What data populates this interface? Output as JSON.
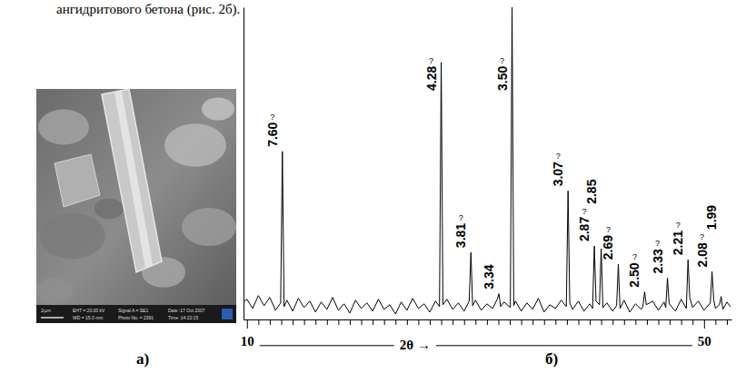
{
  "header": {
    "text": "ангидритового бетона (рис. 2б)."
  },
  "photo": {
    "label": "а)",
    "scale_bar": "2μm",
    "info": [
      "EHT = 20.00 kV",
      "WD = 15.0 mm",
      "Signal A = SE1",
      "Photo No. = 2391",
      "Date :17 Oct 2007",
      "Time :14:22:15"
    ]
  },
  "chart_data": {
    "type": "line",
    "panel_label": "б)",
    "xlabel": "2θ →",
    "color": "#000000",
    "xlim": [
      9.7,
      52.4
    ],
    "xticks": [
      10,
      50
    ],
    "x_minor_ticks": [
      11,
      12,
      13,
      14,
      15,
      16,
      17,
      18,
      19,
      20,
      21,
      22,
      23,
      24,
      25,
      26,
      27,
      28,
      29,
      30,
      31,
      32,
      33,
      34,
      35,
      36,
      37,
      38,
      39,
      40,
      41,
      42,
      43,
      44,
      45,
      46,
      47,
      48,
      49,
      51,
      52
    ],
    "ylim": [
      0,
      340
    ],
    "tick_labels": "x",
    "grid": false,
    "x": [
      9.8,
      10.0,
      10.5,
      11.0,
      11.5,
      12.0,
      12.5,
      12.95,
      13.1,
      13.25,
      13.5,
      14.0,
      14.5,
      15.0,
      15.5,
      16.0,
      16.5,
      17.0,
      17.5,
      18.0,
      18.5,
      19.0,
      19.5,
      20.0,
      20.5,
      21.0,
      21.5,
      22.0,
      22.5,
      23.0,
      23.5,
      24.0,
      24.5,
      25.0,
      25.5,
      26.0,
      26.5,
      26.85,
      27.0,
      27.15,
      27.5,
      28.0,
      28.5,
      29.0,
      29.45,
      29.6,
      29.75,
      30.0,
      30.5,
      31.0,
      31.5,
      31.9,
      32.05,
      32.2,
      32.5,
      33.05,
      33.2,
      33.35,
      33.5,
      34.0,
      34.5,
      35.0,
      35.5,
      36.0,
      36.5,
      37.0,
      37.5,
      37.95,
      38.1,
      38.25,
      38.5,
      39.0,
      39.5,
      40.0,
      40.25,
      40.4,
      40.55,
      40.85,
      41.0,
      41.15,
      41.5,
      42.0,
      42.35,
      42.5,
      42.65,
      43.0,
      43.5,
      44.0,
      44.5,
      44.65,
      44.8,
      44.95,
      45.5,
      46.0,
      46.5,
      46.65,
      46.8,
      46.95,
      47.5,
      48.0,
      48.45,
      48.6,
      48.75,
      49.0,
      49.5,
      50.0,
      50.55,
      50.7,
      50.85,
      51.0,
      51.35,
      51.5,
      51.65,
      52.0,
      52.3
    ],
    "values": [
      20,
      22,
      12,
      26,
      15,
      24,
      10,
      18,
      183,
      14,
      21,
      9,
      23,
      13,
      20,
      8,
      19,
      11,
      24,
      10,
      17,
      7,
      21,
      12,
      18,
      9,
      22,
      11,
      16,
      6,
      19,
      10,
      23,
      12,
      17,
      8,
      20,
      14,
      280,
      16,
      22,
      11,
      18,
      9,
      20,
      73,
      15,
      21,
      10,
      17,
      12,
      22,
      28,
      14,
      19,
      13,
      340,
      15,
      20,
      9,
      18,
      11,
      23,
      8,
      16,
      12,
      21,
      14,
      140,
      18,
      11,
      20,
      9,
      17,
      12,
      80,
      20,
      16,
      77,
      13,
      18,
      9,
      15,
      60,
      12,
      21,
      8,
      17,
      11,
      14,
      30,
      16,
      20,
      10,
      19,
      13,
      45,
      17,
      9,
      22,
      12,
      65,
      24,
      13,
      20,
      10,
      18,
      52,
      21,
      12,
      16,
      25,
      11,
      19,
      14
    ],
    "annotations": [
      {
        "text": "7.60",
        "x": 13.1,
        "y": 183,
        "symbol": "?"
      },
      {
        "text": "4.28",
        "x": 27.0,
        "y": 280,
        "symbol": "?"
      },
      {
        "text": "3.81",
        "x": 29.6,
        "y": 73,
        "symbol": "?"
      },
      {
        "text": "3.34",
        "x": 32.05,
        "y": 28
      },
      {
        "text": "3.50",
        "x": 33.2,
        "y": 340,
        "symbol": "?"
      },
      {
        "text": "3.07",
        "x": 38.1,
        "y": 140,
        "symbol": "?"
      },
      {
        "text": "2.87",
        "x": 40.4,
        "y": 80,
        "symbol": "?"
      },
      {
        "text": "2.85",
        "x": 41.0,
        "y": 77
      },
      {
        "text": "2.69",
        "x": 42.5,
        "y": 60,
        "symbol": "?"
      },
      {
        "text": "2.50",
        "x": 44.8,
        "y": 30,
        "symbol": "?"
      },
      {
        "text": "2.33",
        "x": 46.8,
        "y": 45,
        "symbol": "?"
      },
      {
        "text": "2.21",
        "x": 48.6,
        "y": 65,
        "symbol": "?"
      },
      {
        "text": "2.08",
        "x": 50.7,
        "y": 52,
        "symbol": "?"
      },
      {
        "text": "1.99",
        "x": 51.5,
        "y": 25
      }
    ]
  }
}
